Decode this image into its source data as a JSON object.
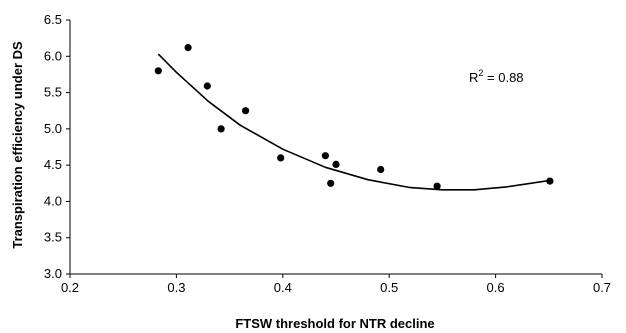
{
  "chart_data": {
    "type": "scatter",
    "xlabel": "FTSW threshold for NTR decline",
    "ylabel": "Transpiration efficiency under DS",
    "xlim": [
      0.2,
      0.7
    ],
    "ylim": [
      3.0,
      6.5
    ],
    "xticks": [
      "0.2",
      "0.3",
      "0.4",
      "0.5",
      "0.6",
      "0.7"
    ],
    "yticks": [
      "3.0",
      "3.5",
      "4.0",
      "4.5",
      "5.0",
      "5.5",
      "6.0",
      "6.5"
    ],
    "grid": false,
    "points": [
      {
        "x": 0.283,
        "y": 5.8
      },
      {
        "x": 0.311,
        "y": 6.12
      },
      {
        "x": 0.329,
        "y": 5.59
      },
      {
        "x": 0.342,
        "y": 5.0
      },
      {
        "x": 0.365,
        "y": 5.25
      },
      {
        "x": 0.398,
        "y": 4.6
      },
      {
        "x": 0.44,
        "y": 4.63
      },
      {
        "x": 0.445,
        "y": 4.25
      },
      {
        "x": 0.45,
        "y": 4.51
      },
      {
        "x": 0.492,
        "y": 4.44
      },
      {
        "x": 0.545,
        "y": 4.21
      },
      {
        "x": 0.651,
        "y": 4.28
      }
    ],
    "trendline": {
      "type": "polynomial-2",
      "x": [
        0.283,
        0.3,
        0.33,
        0.36,
        0.4,
        0.44,
        0.48,
        0.52,
        0.55,
        0.58,
        0.61,
        0.651
      ],
      "y": [
        6.03,
        5.78,
        5.38,
        5.05,
        4.72,
        4.47,
        4.3,
        4.19,
        4.16,
        4.16,
        4.2,
        4.29
      ]
    },
    "annotation": {
      "prefix": "R",
      "sup": "2",
      "suffix": " = 0.88"
    }
  }
}
